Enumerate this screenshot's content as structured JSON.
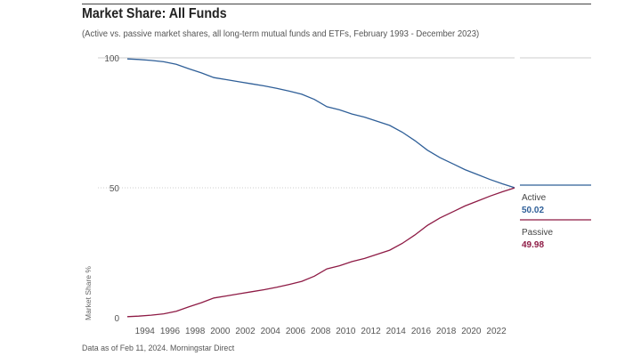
{
  "header": {
    "title": "Market Share: All Funds",
    "subtitle": "(Active vs. passive market shares, all long-term mutual funds and ETFs, February 1993 - December 2023)"
  },
  "footer": {
    "note": "Data as of Feb 11, 2024. Morningstar Direct"
  },
  "colors": {
    "active": "#2f5f98",
    "passive": "#8e1b45",
    "grid": "#999999"
  },
  "chart_data": {
    "type": "line",
    "title": "Market Share: All Funds",
    "xlabel": "",
    "ylabel": "Market Share %",
    "xlim": [
      1993.1,
      2023.95
    ],
    "ylim": [
      0,
      100
    ],
    "yticks": [
      0,
      50,
      100
    ],
    "xticks": [
      "1994",
      "1996",
      "1998",
      "2000",
      "2002",
      "2004",
      "2006",
      "2008",
      "2010",
      "2012",
      "2014",
      "2016",
      "2018",
      "2020",
      "2022"
    ],
    "x": [
      1993.1,
      1994,
      1995,
      1996,
      1997,
      1998,
      1999,
      2000,
      2001,
      2002,
      2003,
      2004,
      2005,
      2006,
      2007,
      2008,
      2009,
      2010,
      2011,
      2012,
      2013,
      2014,
      2015,
      2016,
      2017,
      2018,
      2019,
      2020,
      2021,
      2022,
      2023,
      2023.95
    ],
    "series": [
      {
        "name": "Active",
        "final_value": "50.02",
        "values": [
          99.6,
          99.4,
          99.0,
          98.5,
          97.5,
          95.8,
          94.2,
          92.4,
          91.6,
          90.8,
          90.0,
          89.2,
          88.3,
          87.2,
          86.0,
          84.0,
          81.2,
          80.0,
          78.4,
          77.2,
          75.6,
          74.0,
          71.4,
          68.2,
          64.5,
          61.6,
          59.3,
          57.0,
          55.1,
          53.2,
          51.5,
          50.02
        ]
      },
      {
        "name": "Passive",
        "final_value": "49.98",
        "values": [
          0.4,
          0.6,
          1.0,
          1.5,
          2.5,
          4.2,
          5.8,
          7.6,
          8.4,
          9.2,
          10.0,
          10.8,
          11.7,
          12.8,
          14.0,
          16.0,
          18.8,
          20.0,
          21.6,
          22.8,
          24.4,
          26.0,
          28.6,
          31.8,
          35.5,
          38.4,
          40.7,
          43.0,
          44.9,
          46.8,
          48.5,
          49.98
        ]
      }
    ]
  }
}
